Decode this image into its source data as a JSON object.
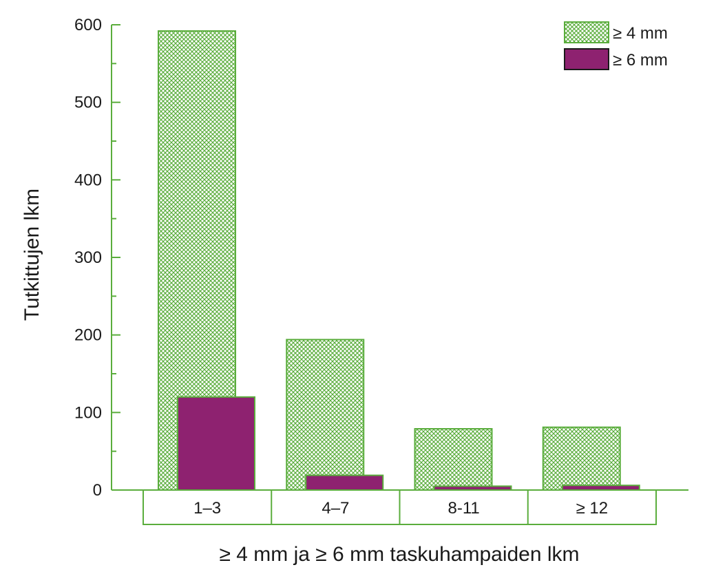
{
  "chart_data": {
    "type": "bar",
    "title": "",
    "xlabel": "≥ 4 mm ja ≥ 6 mm taskuhampaiden lkm",
    "ylabel": "Tutkittujen lkm",
    "categories": [
      "1–3",
      "4–7",
      "8-11",
      "≥ 12"
    ],
    "series": [
      {
        "name": "≥ 4 mm",
        "values": [
          592,
          194,
          79,
          81
        ],
        "color": "#ffffff",
        "pattern": "crosshatch",
        "pattern_color": "#5aad3c",
        "stroke": "#5aad3c"
      },
      {
        "name": "≥ 6 mm",
        "values": [
          120,
          19,
          5,
          6
        ],
        "color": "#8e2270",
        "stroke": "#5aad3c"
      }
    ],
    "ylim": [
      0,
      600
    ],
    "yticks": [
      0,
      100,
      200,
      300,
      400,
      500,
      600
    ],
    "grid": false,
    "legend": "top-right",
    "axis_color": "#5aad3c"
  }
}
